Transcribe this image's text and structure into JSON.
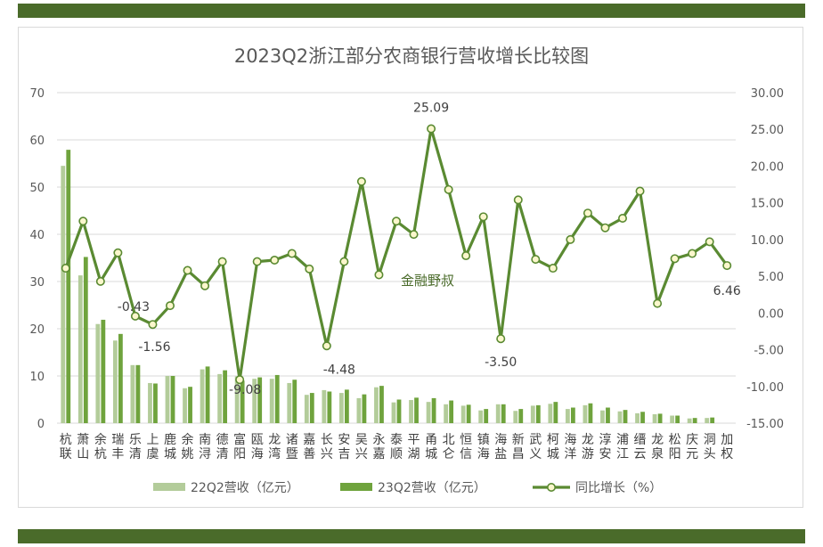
{
  "chart_data": {
    "type": "bar",
    "title": "2023Q2浙江部分农商银行营收增长比较图",
    "watermark": "金融野叔",
    "categories": [
      "杭联",
      "萧山",
      "余杭",
      "瑞丰",
      "乐清",
      "上虞",
      "鹿城",
      "余姚",
      "南浔",
      "德清",
      "富阳",
      "瓯海",
      "龙湾",
      "诸暨",
      "嘉善",
      "长兴",
      "安吉",
      "吴兴",
      "永嘉",
      "泰顺",
      "平湖",
      "甬城",
      "北仑",
      "恒信",
      "镇海",
      "海盐",
      "新昌",
      "武义",
      "柯城",
      "海洋",
      "龙游",
      "淳安",
      "浦江",
      "缙云",
      "龙泉",
      "松阳",
      "庆元",
      "洞头",
      "加权"
    ],
    "series": [
      {
        "name": "22Q2营收（亿元）",
        "color": "#b3cc9a",
        "values": [
          54.5,
          31.3,
          21.0,
          17.5,
          12.3,
          8.5,
          10.0,
          7.4,
          11.4,
          10.4,
          9.9,
          9.4,
          9.4,
          8.5,
          6.0,
          7.0,
          6.4,
          5.3,
          7.6,
          4.4,
          4.9,
          4.5,
          4.0,
          3.7,
          2.7,
          4.0,
          2.6,
          3.7,
          4.1,
          3.0,
          3.8,
          2.7,
          2.5,
          2.1,
          1.9,
          1.6,
          1.0,
          1.1,
          0
        ]
      },
      {
        "name": "23Q2营收（亿元）",
        "color": "#6fa33d",
        "values": [
          57.9,
          35.2,
          21.9,
          18.9,
          12.3,
          8.4,
          10.0,
          7.7,
          12.0,
          11.2,
          9.0,
          9.7,
          10.2,
          9.2,
          6.4,
          6.7,
          7.1,
          6.1,
          7.9,
          5.0,
          5.4,
          5.3,
          4.8,
          3.9,
          3.0,
          4.0,
          3.0,
          3.8,
          4.5,
          3.3,
          4.2,
          3.3,
          2.8,
          2.4,
          2.0,
          1.6,
          1.1,
          1.2,
          0
        ]
      }
    ],
    "line_series": {
      "name": "同比增长（%）",
      "color": "#5a8a32",
      "values": [
        6.1,
        12.5,
        4.3,
        8.2,
        -0.43,
        -1.56,
        1.0,
        5.8,
        3.7,
        7.0,
        -9.08,
        7.0,
        7.2,
        8.1,
        6.0,
        -4.48,
        7.0,
        17.9,
        5.2,
        12.5,
        10.7,
        25.09,
        16.8,
        7.8,
        13.1,
        -3.5,
        15.4,
        7.3,
        6.1,
        10.0,
        13.6,
        11.6,
        12.9,
        16.6,
        1.3,
        7.4,
        8.1,
        9.7,
        6.46
      ]
    },
    "point_labels": [
      {
        "index": 4,
        "text": "-0.43"
      },
      {
        "index": 5,
        "text": "-1.56"
      },
      {
        "index": 10,
        "text": "-9.08"
      },
      {
        "index": 15,
        "text": "-4.48"
      },
      {
        "index": 21,
        "text": "25.09"
      },
      {
        "index": 25,
        "text": "-3.50"
      },
      {
        "index": 38,
        "text": "6.46"
      }
    ],
    "y_left": {
      "min": 0,
      "max": 70,
      "ticks": [
        "0",
        "10",
        "20",
        "30",
        "40",
        "50",
        "60",
        "70"
      ]
    },
    "y_right": {
      "min": -15,
      "max": 30,
      "ticks": [
        "-15.00",
        "-10.00",
        "-5.00",
        "0.00",
        "5.00",
        "10.00",
        "15.00",
        "20.00",
        "25.00",
        "30.00"
      ]
    },
    "grid": true,
    "legend_position": "bottom"
  }
}
